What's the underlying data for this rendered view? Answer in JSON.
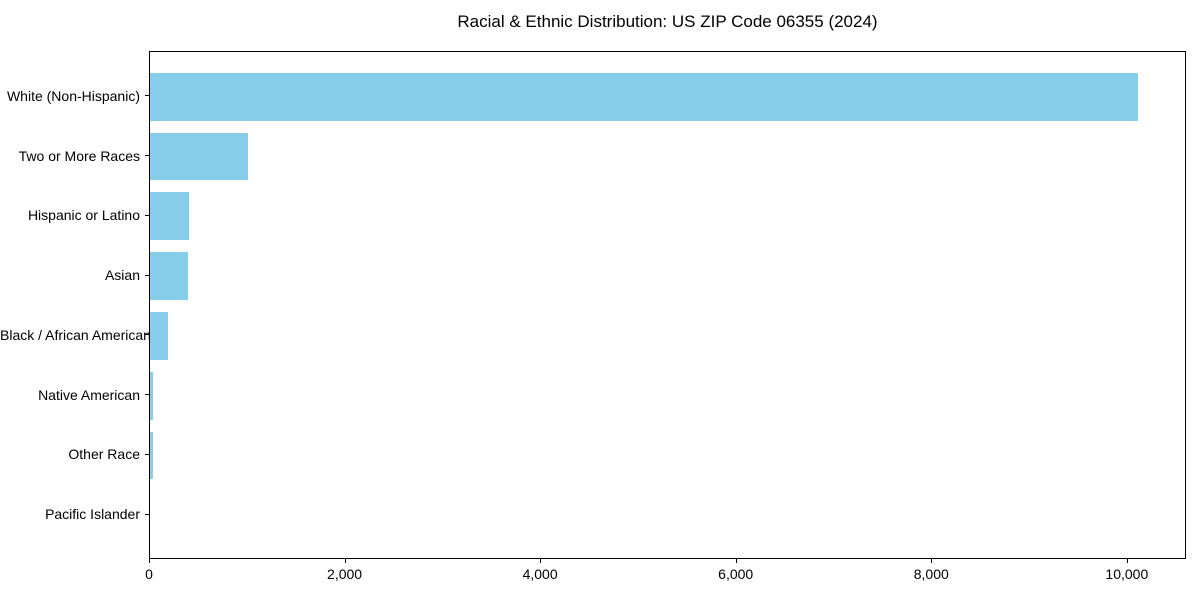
{
  "chart_data": {
    "type": "bar",
    "orientation": "horizontal",
    "title": "Racial & Ethnic Distribution: US ZIP Code 06355 (2024)",
    "categories": [
      "White (Non-Hispanic)",
      "Two or More Races",
      "Hispanic or Latino",
      "Asian",
      "Black / African American",
      "Native American",
      "Other Race",
      "Pacific Islander"
    ],
    "values": [
      10100,
      1000,
      400,
      385,
      180,
      30,
      30,
      0
    ],
    "xlabel": "",
    "ylabel": "",
    "xlim": [
      0,
      10605
    ],
    "x_ticks": [
      {
        "value": 0,
        "label": "0"
      },
      {
        "value": 2000,
        "label": "2,000"
      },
      {
        "value": 4000,
        "label": "4,000"
      },
      {
        "value": 6000,
        "label": "6,000"
      },
      {
        "value": 8000,
        "label": "8,000"
      },
      {
        "value": 10000,
        "label": "10,000"
      }
    ],
    "bar_color": "#87CEEB",
    "grid": false,
    "legend": null,
    "frame": true
  }
}
